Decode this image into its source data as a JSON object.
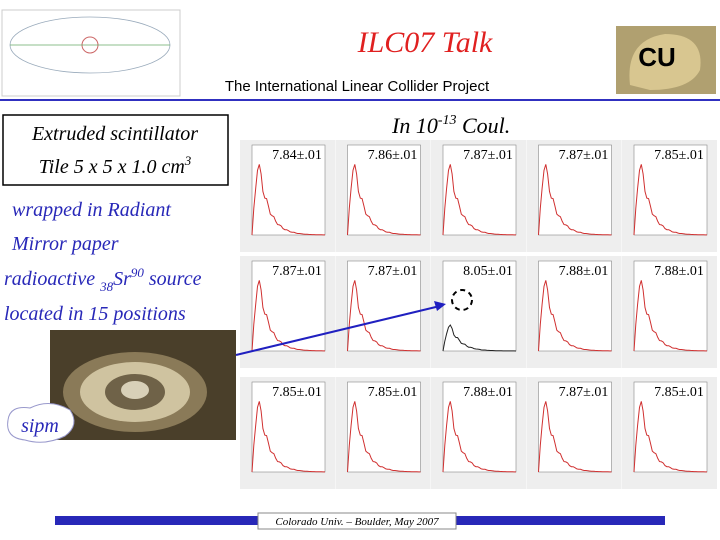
{
  "header": {
    "title": "ILC07 Talk",
    "subtitle": "The International Linear Collider Project"
  },
  "box": {
    "line1": "Extruded scintillator",
    "line2": "Tile 5 x 5 x 1.0 cm",
    "line2_sup": "3"
  },
  "units": {
    "text": "In 10",
    "sup": "-13",
    "rest": " Coul."
  },
  "body": {
    "line1": "wrapped in Radiant",
    "line2": "Mirror paper",
    "line3_a": "radioactive ",
    "line3_sub": "38",
    "line3_b": "Sr",
    "line3_sup": "90",
    "line3_c": " source",
    "line4": "located in 15 positions"
  },
  "photo_label": "sipm",
  "cells": [
    [
      "7.84±.01",
      "7.86±.01",
      "7.87±.01",
      "7.87±.01",
      "7.85±.01"
    ],
    [
      "7.87±.01",
      "7.87±.01",
      "8.05±.01",
      "7.88±.01",
      "7.88±.01"
    ],
    [
      "7.85±.01",
      "7.85±.01",
      "7.88±.01",
      "7.87±.01",
      "7.85±.01"
    ]
  ],
  "footer": "Colorado Univ. – Boulder, May 2007"
}
